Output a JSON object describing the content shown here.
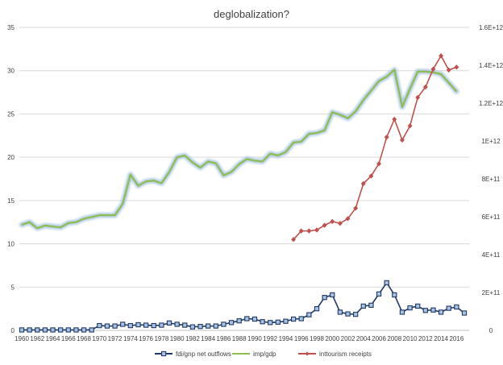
{
  "chart_data": {
    "type": "line",
    "title": "deglobalization?",
    "x": [
      1960,
      1961,
      1962,
      1963,
      1964,
      1965,
      1966,
      1967,
      1968,
      1969,
      1970,
      1971,
      1972,
      1973,
      1974,
      1975,
      1976,
      1977,
      1978,
      1979,
      1980,
      1981,
      1982,
      1983,
      1984,
      1985,
      1986,
      1987,
      1988,
      1989,
      1990,
      1991,
      1992,
      1993,
      1994,
      1995,
      1996,
      1997,
      1998,
      1999,
      2000,
      2001,
      2002,
      2003,
      2004,
      2005,
      2006,
      2007,
      2008,
      2009,
      2010,
      2011,
      2012,
      2013,
      2014,
      2015,
      2016,
      2017
    ],
    "x_ticks": [
      "1960",
      "1962",
      "1964",
      "1966",
      "1968",
      "1970",
      "1972",
      "1974",
      "1976",
      "1978",
      "1980",
      "1982",
      "1984",
      "1986",
      "1988",
      "1990",
      "1992",
      "1994",
      "1996",
      "1998",
      "2000",
      "2002",
      "2004",
      "2006",
      "2008",
      "2010",
      "2012",
      "2014",
      "2016"
    ],
    "ylim": [
      0,
      35
    ],
    "y_ticks": [
      "0",
      "5",
      "10",
      "15",
      "20",
      "25",
      "30",
      "35"
    ],
    "y2lim": [
      0,
      1600000000000.0
    ],
    "y2_ticks": [
      "0",
      "2E+11",
      "4E+11",
      "6E+11",
      "8E+11",
      "1E+12",
      "1.2E+12",
      "1.4E+12",
      "1.6E+12"
    ],
    "grid": "horizontal",
    "legend_position": "bottom",
    "series": [
      {
        "name": "fdi/gnp net outflows",
        "axis": "left",
        "color": "#1f3864",
        "marker": "square",
        "values": [
          0.05,
          0.05,
          0.05,
          0.05,
          0.05,
          0.05,
          0.05,
          0.05,
          0.05,
          0.05,
          0.55,
          0.5,
          0.5,
          0.7,
          0.55,
          0.65,
          0.6,
          0.55,
          0.6,
          0.85,
          0.7,
          0.6,
          0.4,
          0.45,
          0.5,
          0.5,
          0.7,
          0.9,
          1.1,
          1.35,
          1.3,
          1.0,
          0.9,
          0.95,
          1.05,
          1.3,
          1.35,
          1.8,
          2.5,
          3.8,
          4.1,
          2.1,
          1.9,
          1.85,
          2.8,
          2.9,
          4.2,
          5.5,
          4.1,
          2.1,
          2.6,
          2.8,
          2.3,
          2.35,
          2.1,
          2.55,
          2.7,
          2.0
        ]
      },
      {
        "name": "imp/gdp",
        "axis": "left",
        "color": "#8fbc4f",
        "glow": "#a6c4e0",
        "values": [
          12.2,
          12.5,
          11.8,
          12.1,
          12.0,
          11.9,
          12.4,
          12.5,
          12.9,
          13.1,
          13.3,
          13.3,
          13.3,
          14.6,
          18.0,
          16.7,
          17.2,
          17.3,
          17.0,
          18.3,
          20.0,
          20.2,
          19.4,
          18.8,
          19.5,
          19.3,
          17.9,
          18.3,
          19.2,
          19.8,
          19.6,
          19.5,
          20.4,
          20.2,
          20.6,
          21.7,
          21.8,
          22.7,
          22.8,
          23.1,
          25.2,
          24.9,
          24.5,
          25.3,
          26.6,
          27.7,
          28.8,
          29.3,
          30.1,
          25.8,
          27.9,
          29.9,
          29.9,
          29.8,
          29.6,
          28.6,
          27.6,
          null
        ]
      },
      {
        "name": "inttourism receipts",
        "axis": "right",
        "color": "#c0504d",
        "marker": "diamond",
        "values": [
          null,
          null,
          null,
          null,
          null,
          null,
          null,
          null,
          null,
          null,
          null,
          null,
          null,
          null,
          null,
          null,
          null,
          null,
          null,
          null,
          null,
          null,
          null,
          null,
          null,
          null,
          null,
          null,
          null,
          null,
          null,
          null,
          null,
          null,
          null,
          480000000000.0,
          525000000000.0,
          525000000000.0,
          530000000000.0,
          555000000000.0,
          575000000000.0,
          565000000000.0,
          590000000000.0,
          645000000000.0,
          775000000000.0,
          815000000000.0,
          880000000000.0,
          1020000000000.0,
          1115000000000.0,
          1005000000000.0,
          1080000000000.0,
          1230000000000.0,
          1285000000000.0,
          1380000000000.0,
          1450000000000.0,
          1375000000000.0,
          1390000000000.0,
          null
        ]
      }
    ]
  }
}
